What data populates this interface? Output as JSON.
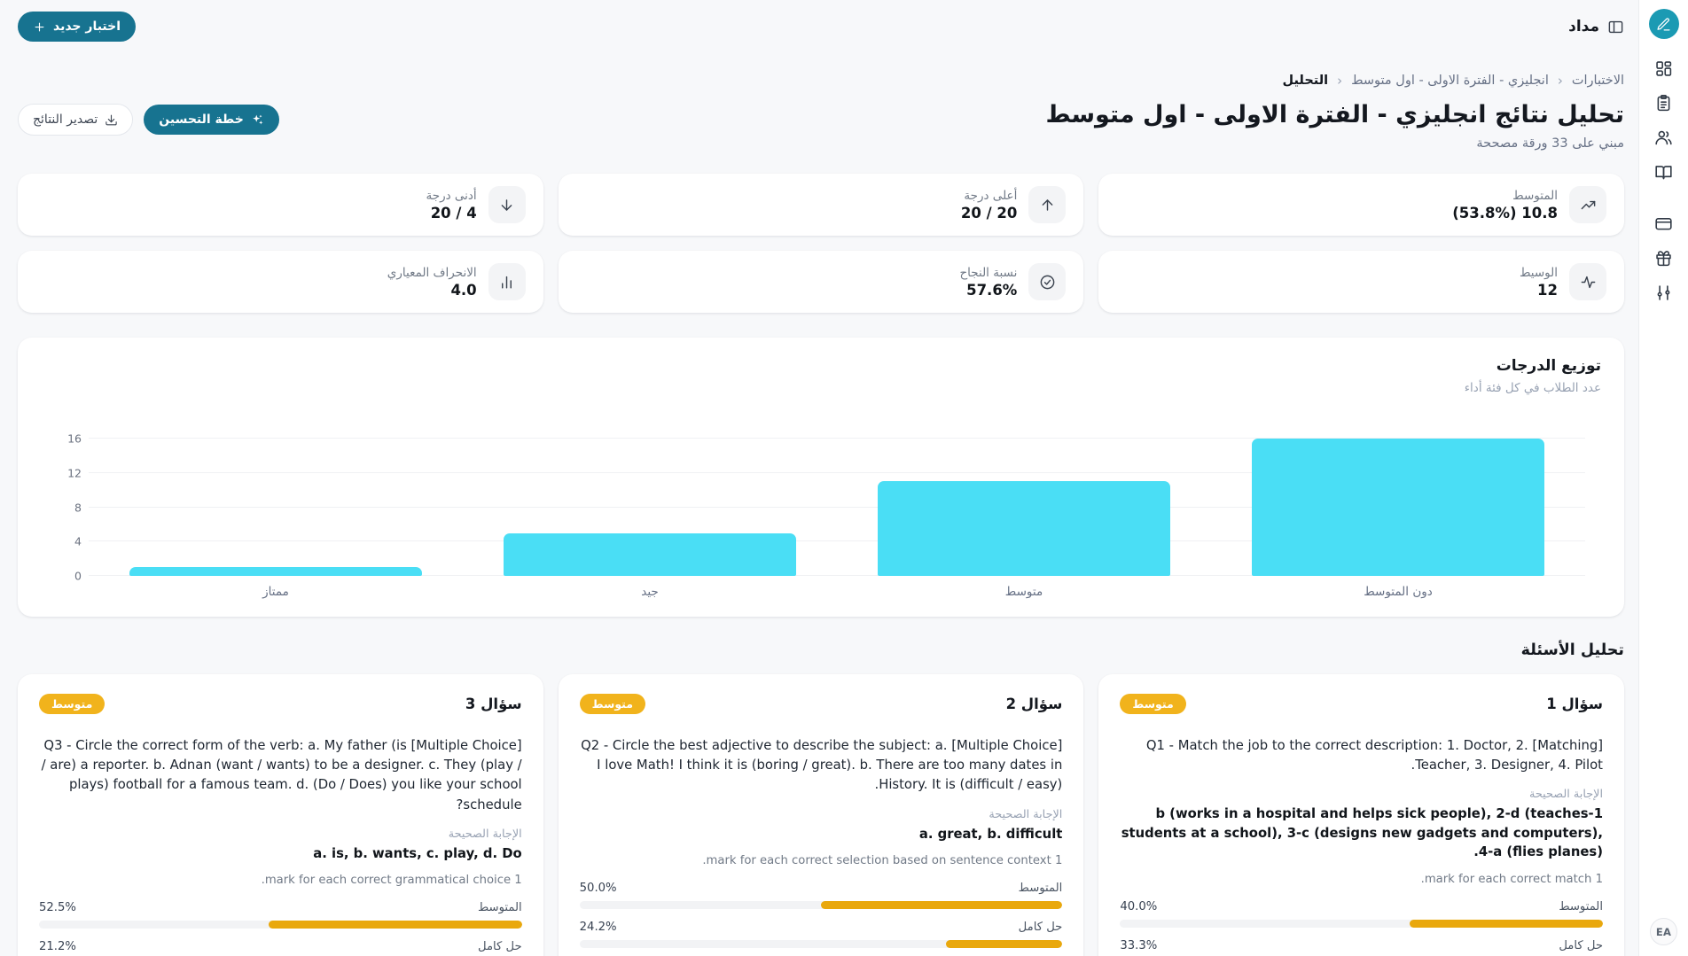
{
  "app": {
    "name": "مداد"
  },
  "sidebar": {
    "logo_icon": "pencil",
    "groups": [
      [
        "dashboard",
        "clipboard",
        "users",
        "book-open"
      ],
      [
        "credit-card",
        "gift",
        "sliders"
      ]
    ],
    "user_initials": "EA"
  },
  "topbar": {
    "new_test_label": "اختبار جديد"
  },
  "breadcrumb": {
    "separator": "‹",
    "items": [
      {
        "label": "الاختبارات",
        "current": false
      },
      {
        "label": "انجليزي - الفترة الاولى - اول متوسط",
        "current": false
      },
      {
        "label": "التحليل",
        "current": true
      }
    ]
  },
  "page": {
    "title": "تحليل نتائج انجليزي - الفترة الاولى - اول متوسط",
    "subtitle": "مبني على 33 ورقة مصححة",
    "improvement_plan_label": "خطة التحسين",
    "export_results_label": "تصدير النتائج"
  },
  "stats": [
    {
      "label": "المتوسط",
      "value": "10.8 (53.8%)",
      "icon": "trending-up"
    },
    {
      "label": "أعلى درجة",
      "value": "20 / 20",
      "icon": "arrow-up"
    },
    {
      "label": "أدنى درجة",
      "value": "4 / 20",
      "icon": "arrow-down"
    },
    {
      "label": "الوسيط",
      "value": "12",
      "icon": "activity"
    },
    {
      "label": "نسبة النجاح",
      "value": "57.6%",
      "icon": "check-circle"
    },
    {
      "label": "الانحراف المعياري",
      "value": "4.0",
      "icon": "bar-chart"
    }
  ],
  "chart_data": {
    "type": "bar",
    "title": "توزيع الدرجات",
    "subtitle": "عدد الطلاب في كل فئة أداء",
    "categories": [
      "دون المتوسط",
      "متوسط",
      "جيد",
      "ممتاز"
    ],
    "values": [
      16,
      11,
      5,
      1
    ],
    "yticks": [
      0,
      4,
      8,
      12,
      16
    ],
    "ylim": [
      0,
      16
    ],
    "bar_color": "#4adef5",
    "grid": true,
    "legend_position": "none"
  },
  "questions_section": {
    "heading": "تحليل الأسئلة",
    "answer_label": "الإجابة الصحيحة",
    "questions": [
      {
        "number": "سؤال 1",
        "badge": "متوسط",
        "type_tag": "[Matching]",
        "text": "Q1 - Match the job to the correct description: 1. Doctor, 2. Teacher, 3. Designer, 4. Pilot.",
        "answer": "1-b (works in a hospital and helps sick people), 2-d (teaches students at a school), 3-c (designs new gadgets and computers), 4-a (flies planes).",
        "note": "1 mark for each correct match.",
        "metrics": [
          {
            "label": "المتوسط",
            "value": "40.0%",
            "pct": 40.0
          },
          {
            "label": "حل كامل",
            "value": "33.3%",
            "pct": 33.3
          }
        ]
      },
      {
        "number": "سؤال 2",
        "badge": "متوسط",
        "type_tag": "[Multiple Choice]",
        "text": "Q2 - Circle the best adjective to describe the subject: a. I love Math! I think it is (boring / great). b. There are too many dates in History. It is (difficult / easy).",
        "answer": "a. great, b. difficult",
        "note": "1 mark for each correct selection based on sentence context.",
        "metrics": [
          {
            "label": "المتوسط",
            "value": "50.0%",
            "pct": 50.0
          },
          {
            "label": "حل كامل",
            "value": "24.2%",
            "pct": 24.2
          }
        ]
      },
      {
        "number": "سؤال 3",
        "badge": "متوسط",
        "type_tag": "[Multiple Choice]",
        "text": "Q3 - Circle the correct form of the verb: a. My father (is / are) a reporter. b. Adnan (want / wants) to be a designer. c. They (play / plays) football for a famous team. d. (Do / Does) you like your school schedule?",
        "answer": "a. is, b. wants, c. play, d. Do",
        "note": "1 mark for each correct grammatical choice.",
        "metrics": [
          {
            "label": "المتوسط",
            "value": "52.5%",
            "pct": 52.5
          },
          {
            "label": "حل كامل",
            "value": "21.2%",
            "pct": 21.2
          }
        ]
      }
    ]
  },
  "colors": {
    "teal_button": "#177390",
    "logo_teal": "#1b9ab3",
    "badge_amber": "#f1b31c",
    "progress_amber": "#e9a80d",
    "chart_cyan": "#4adef5"
  }
}
